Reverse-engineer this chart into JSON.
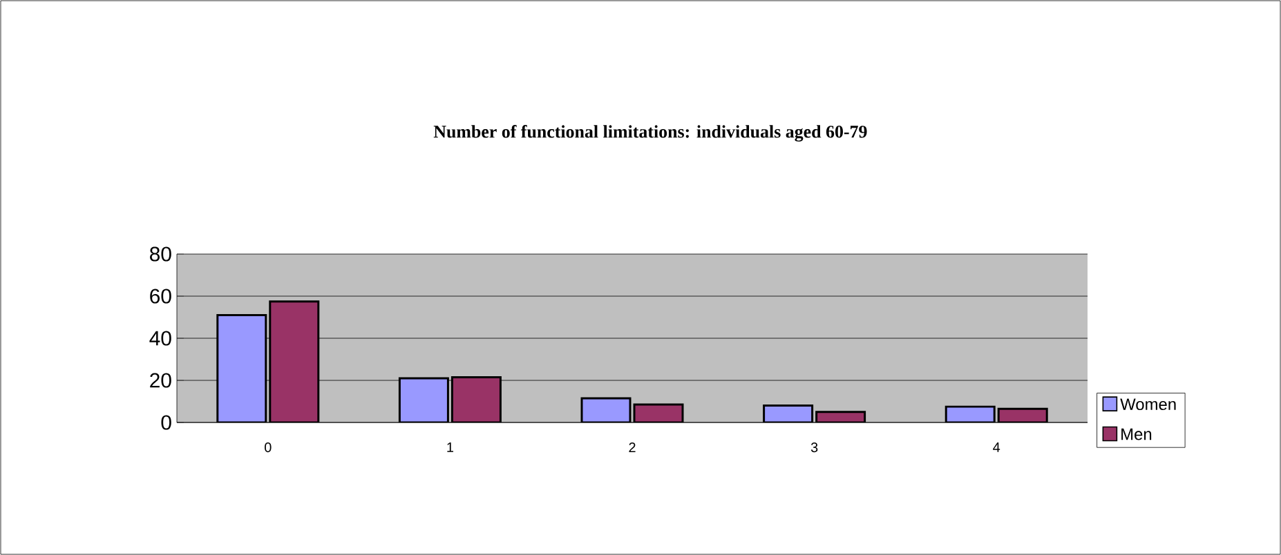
{
  "chart_data": {
    "type": "bar",
    "title": "Number of functional limitations:  individuals aged 60-79",
    "categories": [
      "0",
      "1",
      "2",
      "3",
      "4"
    ],
    "series": [
      {
        "name": "Women",
        "color": "#9999ff",
        "values": [
          51,
          21,
          11.5,
          8,
          7.5
        ]
      },
      {
        "name": "Men",
        "color": "#993366",
        "values": [
          57.5,
          21.5,
          8.5,
          5,
          6.5
        ]
      }
    ],
    "ylim": [
      0,
      80
    ],
    "yticks": [
      0,
      20,
      40,
      60,
      80
    ],
    "grid": "y",
    "legend": "bottom right"
  }
}
